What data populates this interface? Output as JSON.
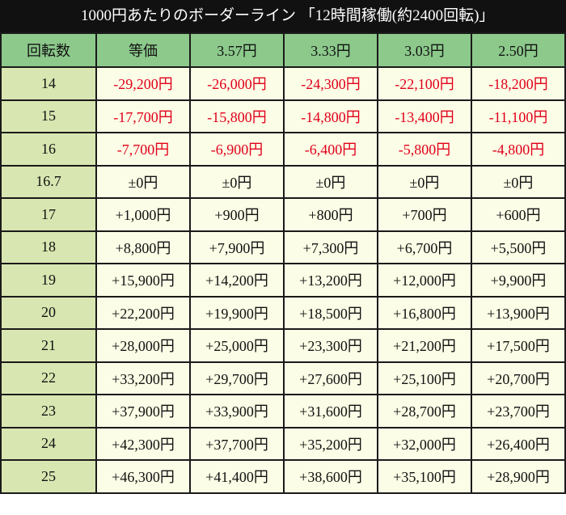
{
  "title": "1000円あたりのボーダーライン 「12時間稼働(約2400回転)」",
  "table": {
    "header": [
      "回転数",
      "等価",
      "3.57円",
      "3.33円",
      "3.03円",
      "2.50円"
    ],
    "rows": [
      [
        "14",
        "-29,200円",
        "-26,000円",
        "-24,300円",
        "-22,100円",
        "-18,200円"
      ],
      [
        "15",
        "-17,700円",
        "-15,800円",
        "-14,800円",
        "-13,400円",
        "-11,100円"
      ],
      [
        "16",
        "-7,700円",
        "-6,900円",
        "-6,400円",
        "-5,800円",
        "-4,800円"
      ],
      [
        "16.7",
        "±0円",
        "±0円",
        "±0円",
        "±0円",
        "±0円"
      ],
      [
        "17",
        "+1,000円",
        "+900円",
        "+800円",
        "+700円",
        "+600円"
      ],
      [
        "18",
        "+8,800円",
        "+7,900円",
        "+7,300円",
        "+6,700円",
        "+5,500円"
      ],
      [
        "19",
        "+15,900円",
        "+14,200円",
        "+13,200円",
        "+12,000円",
        "+9,900円"
      ],
      [
        "20",
        "+22,200円",
        "+19,900円",
        "+18,500円",
        "+16,800円",
        "+13,900円"
      ],
      [
        "21",
        "+28,000円",
        "+25,000円",
        "+23,300円",
        "+21,200円",
        "+17,500円"
      ],
      [
        "22",
        "+33,200円",
        "+29,700円",
        "+27,600円",
        "+25,100円",
        "+20,700円"
      ],
      [
        "23",
        "+37,900円",
        "+33,900円",
        "+31,600円",
        "+28,700円",
        "+23,700円"
      ],
      [
        "24",
        "+42,300円",
        "+37,700円",
        "+35,200円",
        "+32,000円",
        "+26,400円"
      ],
      [
        "25",
        "+46,300円",
        "+41,400円",
        "+38,600円",
        "+35,100円",
        "+28,900円"
      ]
    ]
  }
}
